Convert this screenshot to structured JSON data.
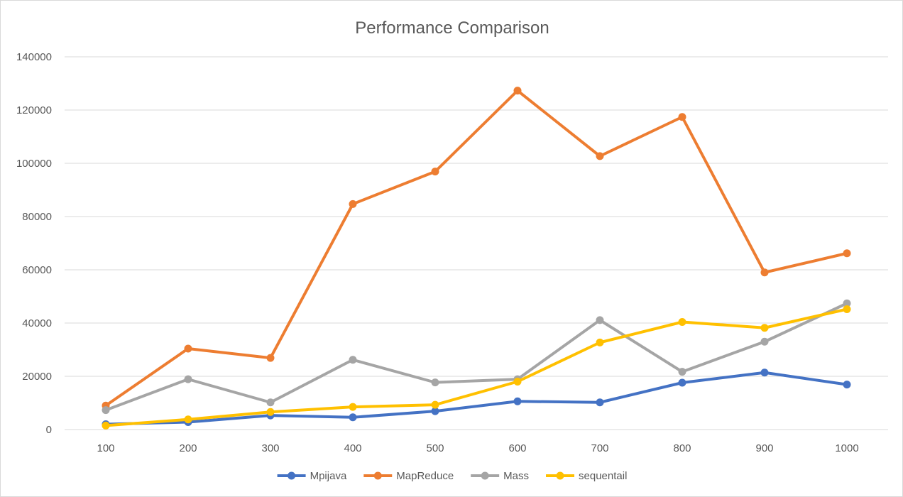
{
  "chart_data": {
    "type": "line",
    "title": "Performance Comparison",
    "xlabel": "",
    "ylabel": "",
    "categories": [
      "100",
      "200",
      "300",
      "400",
      "500",
      "600",
      "700",
      "800",
      "900",
      "1000"
    ],
    "ylim": [
      0,
      140000
    ],
    "yticks": [
      "0",
      "20000",
      "40000",
      "60000",
      "80000",
      "100000",
      "120000",
      "140000"
    ],
    "grid": true,
    "legend_position": "bottom",
    "series": [
      {
        "name": "Mpijava",
        "color": "#4472c4",
        "values": [
          2000,
          2800,
          5300,
          4600,
          6900,
          10600,
          10200,
          17600,
          21400,
          16900
        ]
      },
      {
        "name": "MapReduce",
        "color": "#ed7d31",
        "values": [
          9000,
          30400,
          26900,
          84700,
          96900,
          127300,
          102700,
          117400,
          59000,
          66200
        ]
      },
      {
        "name": "Mass",
        "color": "#a5a5a5",
        "values": [
          7300,
          18900,
          10200,
          26200,
          17700,
          18900,
          41100,
          21700,
          33000,
          47400
        ]
      },
      {
        "name": "sequentail",
        "color": "#ffc000",
        "values": [
          1500,
          3800,
          6600,
          8500,
          9300,
          18000,
          32700,
          40400,
          38200,
          45200
        ]
      }
    ]
  }
}
